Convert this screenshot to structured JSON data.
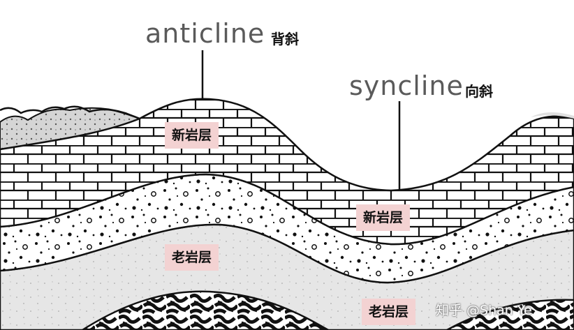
{
  "labels": {
    "anticline_en": "anticline",
    "anticline_cn": "背斜",
    "syncline_en": "syncline",
    "syncline_cn": "向斜"
  },
  "layer_tags": {
    "young_top": "新岩层",
    "young_right": "新岩层",
    "old_middle": "老岩层",
    "old_bottom": "老岩层"
  },
  "watermark": "知乎 @Shan Ye",
  "colors": {
    "tag_background": "#f3d2d2",
    "line": "#111111",
    "sandstone": "#ebebeb",
    "dotted_fill": "#d8d8d8",
    "core": "#e3e3e3",
    "term_text": "#5a5a5a"
  }
}
